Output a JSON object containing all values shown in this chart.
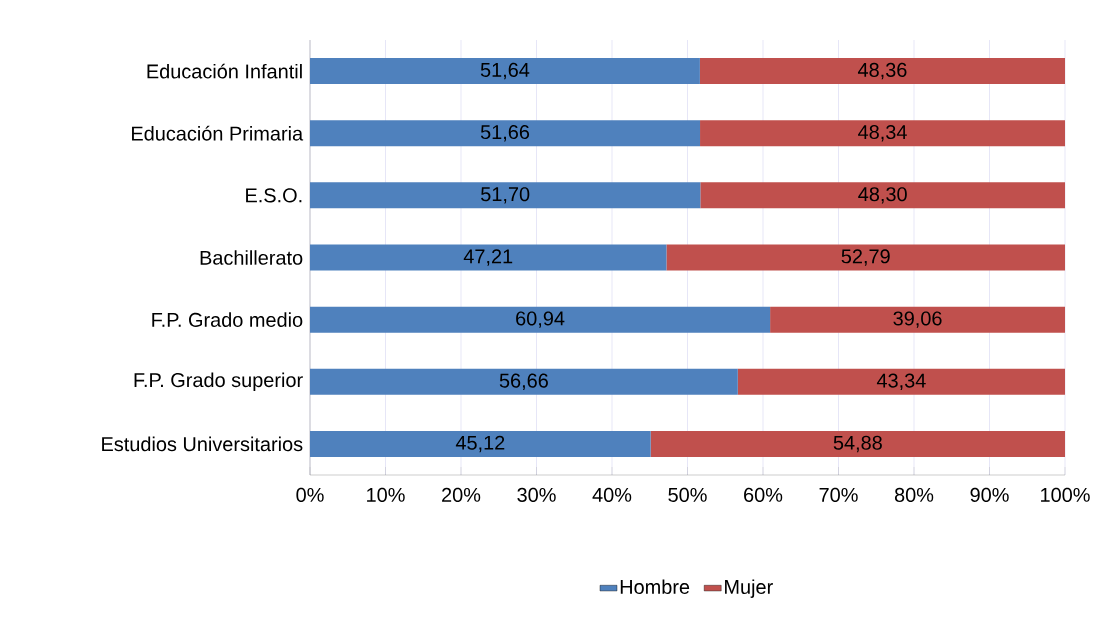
{
  "chart_data": {
    "type": "bar",
    "orientation": "horizontal",
    "stacked": true,
    "categories": [
      "Educación Infantil",
      "Educación Primaria",
      "E.S.O.",
      "Bachillerato",
      "F.P. Grado medio",
      "F.P. Grado superior",
      "Estudios Universitarios"
    ],
    "series": [
      {
        "name": "Hombre",
        "color": "#4f81bd",
        "values": [
          51.64,
          51.66,
          51.7,
          47.21,
          60.94,
          56.66,
          45.12
        ],
        "value_labels": [
          "51,64",
          "51,66",
          "51,70",
          "47,21",
          "60,94",
          "56,66",
          "45,12"
        ]
      },
      {
        "name": "Mujer",
        "color": "#c0504d",
        "values": [
          48.36,
          48.34,
          48.3,
          52.79,
          39.06,
          43.34,
          54.88
        ],
        "value_labels": [
          "48,36",
          "48,34",
          "48,30",
          "52,79",
          "39,06",
          "43,34",
          "54,88"
        ]
      }
    ],
    "xlim": [
      0,
      100
    ],
    "xticks": [
      {
        "value": 0,
        "label": "0%"
      },
      {
        "value": 10,
        "label": "10%"
      },
      {
        "value": 20,
        "label": "20%"
      },
      {
        "value": 30,
        "label": "30%"
      },
      {
        "value": 40,
        "label": "40%"
      },
      {
        "value": 50,
        "label": "50%"
      },
      {
        "value": 60,
        "label": "60%"
      },
      {
        "value": 70,
        "label": "70%"
      },
      {
        "value": 80,
        "label": "80%"
      },
      {
        "value": 90,
        "label": "90%"
      },
      {
        "value": 100,
        "label": "100%"
      }
    ],
    "grid": "x",
    "legend": "bottom"
  }
}
